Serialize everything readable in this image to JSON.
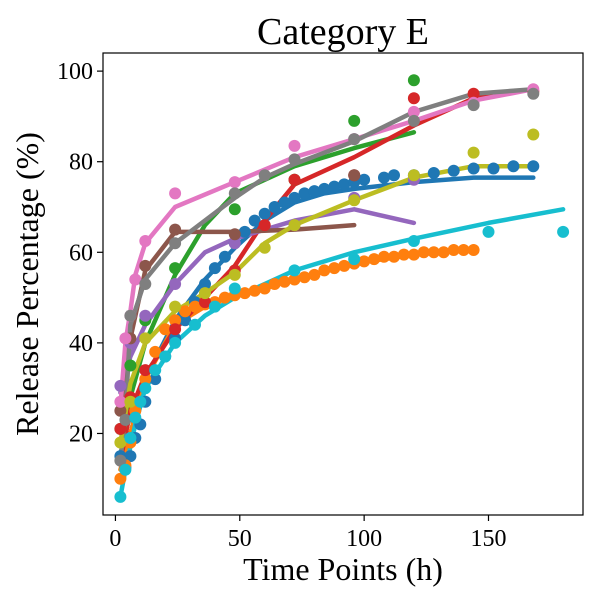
{
  "chart_data": {
    "type": "scatter",
    "title": "Category E",
    "xlabel": "Time Points (h)",
    "ylabel": "Release Percentage (%)",
    "xlim": [
      -5,
      188
    ],
    "ylim": [
      2,
      104
    ],
    "xticks": [
      0,
      50,
      100,
      150
    ],
    "yticks": [
      20,
      40,
      60,
      80,
      100
    ],
    "xtick_labels": [
      "0",
      "50",
      "100",
      "150"
    ],
    "ytick_labels": [
      "20",
      "40",
      "60",
      "80",
      "100"
    ],
    "grid": false,
    "legend": "none",
    "series": [
      {
        "color": "#1f77b4",
        "points": [
          [
            2,
            15
          ],
          [
            4,
            12.5
          ],
          [
            6,
            15
          ],
          [
            8,
            19
          ],
          [
            10,
            22
          ],
          [
            12,
            27
          ],
          [
            16,
            32
          ],
          [
            20,
            37
          ],
          [
            24,
            41
          ],
          [
            28,
            45
          ],
          [
            32,
            49
          ],
          [
            36,
            53
          ],
          [
            40,
            56.5
          ],
          [
            44,
            59
          ],
          [
            48,
            62
          ],
          [
            52,
            64.5
          ],
          [
            56,
            67
          ],
          [
            60,
            68.5
          ],
          [
            64,
            70
          ],
          [
            68,
            71
          ],
          [
            72,
            72
          ],
          [
            76,
            73
          ],
          [
            80,
            73.5
          ],
          [
            84,
            74
          ],
          [
            88,
            74.5
          ],
          [
            92,
            75
          ],
          [
            96,
            75.5
          ],
          [
            100,
            76
          ],
          [
            108,
            76.5
          ],
          [
            112,
            77
          ],
          [
            120,
            77
          ],
          [
            128,
            77.5
          ],
          [
            136,
            78
          ],
          [
            144,
            78.5
          ],
          [
            152,
            78.5
          ],
          [
            160,
            79
          ],
          [
            168,
            79
          ]
        ],
        "fit": [
          [
            2,
            14
          ],
          [
            6,
            20
          ],
          [
            12,
            32
          ],
          [
            24,
            45
          ],
          [
            36,
            54
          ],
          [
            48,
            61
          ],
          [
            60,
            67
          ],
          [
            72,
            71
          ],
          [
            84,
            73
          ],
          [
            96,
            74
          ],
          [
            120,
            75.5
          ],
          [
            144,
            76.5
          ],
          [
            168,
            76.5
          ]
        ]
      },
      {
        "color": "#ff7f0e",
        "points": [
          [
            2,
            10
          ],
          [
            4,
            13
          ],
          [
            6,
            18
          ],
          [
            8,
            25
          ],
          [
            12,
            32
          ],
          [
            16,
            38
          ],
          [
            20,
            43
          ],
          [
            24,
            45
          ],
          [
            28,
            47
          ],
          [
            32,
            48
          ],
          [
            36,
            48.5
          ],
          [
            40,
            49
          ],
          [
            44,
            50
          ],
          [
            48,
            50.5
          ],
          [
            52,
            51
          ],
          [
            56,
            51.5
          ],
          [
            60,
            52
          ],
          [
            64,
            53
          ],
          [
            68,
            53.5
          ],
          [
            72,
            54
          ],
          [
            76,
            54.5
          ],
          [
            80,
            55
          ],
          [
            84,
            56
          ],
          [
            88,
            56.5
          ],
          [
            92,
            57
          ],
          [
            96,
            57.5
          ],
          [
            100,
            58
          ],
          [
            104,
            58.5
          ],
          [
            108,
            59
          ],
          [
            112,
            59
          ],
          [
            116,
            59.5
          ],
          [
            120,
            59.5
          ],
          [
            124,
            60
          ],
          [
            128,
            60
          ],
          [
            132,
            60
          ],
          [
            136,
            60.5
          ],
          [
            140,
            60.5
          ],
          [
            144,
            60.5
          ]
        ],
        "fit": [
          [
            2,
            12
          ],
          [
            6,
            20
          ],
          [
            12,
            32
          ],
          [
            24,
            44
          ],
          [
            36,
            48
          ],
          [
            48,
            50.5
          ],
          [
            60,
            52
          ],
          [
            72,
            54
          ],
          [
            96,
            57.5
          ],
          [
            120,
            59.5
          ],
          [
            144,
            60.5
          ]
        ]
      },
      {
        "color": "#2ca02c",
        "points": [
          [
            2,
            21
          ],
          [
            6,
            35
          ],
          [
            12,
            45
          ],
          [
            24,
            56.5
          ],
          [
            48,
            69.5
          ],
          [
            72,
            76
          ],
          [
            96,
            89
          ],
          [
            120,
            98
          ]
        ],
        "fit": [
          [
            2,
            15
          ],
          [
            6,
            28
          ],
          [
            12,
            40
          ],
          [
            24,
            55
          ],
          [
            36,
            66
          ],
          [
            48,
            73
          ],
          [
            72,
            79
          ],
          [
            96,
            83
          ],
          [
            120,
            86.5
          ]
        ]
      },
      {
        "color": "#d62728",
        "points": [
          [
            2,
            21
          ],
          [
            6,
            28
          ],
          [
            12,
            34
          ],
          [
            24,
            43
          ],
          [
            36,
            49
          ],
          [
            48,
            56
          ],
          [
            60,
            66
          ],
          [
            72,
            76
          ],
          [
            96,
            77
          ],
          [
            120,
            94
          ],
          [
            144,
            95
          ],
          [
            168,
            95.5
          ]
        ],
        "fit": [
          [
            2,
            14
          ],
          [
            6,
            25
          ],
          [
            12,
            33
          ],
          [
            24,
            43
          ],
          [
            36,
            50
          ],
          [
            48,
            57
          ],
          [
            60,
            67
          ],
          [
            72,
            75
          ],
          [
            96,
            81
          ],
          [
            120,
            88
          ],
          [
            144,
            94
          ],
          [
            168,
            96
          ]
        ]
      },
      {
        "color": "#9467bd",
        "points": [
          [
            2,
            30.5
          ],
          [
            6,
            40
          ],
          [
            12,
            46
          ],
          [
            24,
            53
          ],
          [
            48,
            62
          ],
          [
            72,
            66
          ],
          [
            96,
            72
          ],
          [
            120,
            76
          ]
        ],
        "fit": [
          [
            2,
            29
          ],
          [
            6,
            37
          ],
          [
            12,
            44
          ],
          [
            24,
            53
          ],
          [
            36,
            60
          ],
          [
            48,
            63
          ],
          [
            72,
            67
          ],
          [
            96,
            69.5
          ],
          [
            120,
            66.5
          ]
        ]
      },
      {
        "color": "#8c564b",
        "points": [
          [
            2,
            25
          ],
          [
            6,
            41
          ],
          [
            12,
            57
          ],
          [
            24,
            65
          ],
          [
            48,
            64
          ],
          [
            96,
            77
          ]
        ],
        "fit": [
          [
            2,
            25
          ],
          [
            6,
            41
          ],
          [
            12,
            56
          ],
          [
            24,
            64.5
          ],
          [
            48,
            64.5
          ],
          [
            72,
            65
          ],
          [
            96,
            66
          ]
        ]
      },
      {
        "color": "#e377c2",
        "points": [
          [
            2,
            27
          ],
          [
            4,
            41
          ],
          [
            6,
            46
          ],
          [
            8,
            54
          ],
          [
            12,
            62.5
          ],
          [
            24,
            73
          ],
          [
            48,
            75.5
          ],
          [
            72,
            83.5
          ],
          [
            96,
            85
          ],
          [
            120,
            91
          ],
          [
            144,
            93
          ],
          [
            168,
            96
          ]
        ],
        "fit": [
          [
            2,
            26
          ],
          [
            4,
            40
          ],
          [
            6,
            47
          ],
          [
            8,
            55
          ],
          [
            12,
            62
          ],
          [
            24,
            70
          ],
          [
            48,
            75.5
          ],
          [
            72,
            81
          ],
          [
            96,
            85
          ],
          [
            120,
            89
          ],
          [
            144,
            93.5
          ],
          [
            168,
            96
          ]
        ]
      },
      {
        "color": "#7f7f7f",
        "points": [
          [
            2,
            14
          ],
          [
            4,
            23
          ],
          [
            6,
            46
          ],
          [
            12,
            53
          ],
          [
            24,
            62
          ],
          [
            48,
            73
          ],
          [
            60,
            77
          ],
          [
            72,
            80.5
          ],
          [
            96,
            85
          ],
          [
            120,
            89
          ],
          [
            144,
            92.5
          ],
          [
            168,
            95
          ]
        ],
        "fit": [
          [
            2,
            14
          ],
          [
            4,
            24
          ],
          [
            6,
            44
          ],
          [
            12,
            54
          ],
          [
            24,
            62
          ],
          [
            48,
            72
          ],
          [
            60,
            76.5
          ],
          [
            72,
            79.5
          ],
          [
            96,
            84.5
          ],
          [
            120,
            91
          ],
          [
            144,
            95
          ],
          [
            168,
            96
          ]
        ]
      },
      {
        "color": "#bcbd22",
        "points": [
          [
            2,
            18
          ],
          [
            6,
            27
          ],
          [
            12,
            41
          ],
          [
            24,
            48
          ],
          [
            36,
            51
          ],
          [
            48,
            55
          ],
          [
            60,
            61
          ],
          [
            72,
            66
          ],
          [
            96,
            71.5
          ],
          [
            120,
            77
          ],
          [
            144,
            82
          ],
          [
            168,
            86
          ]
        ],
        "fit": [
          [
            2,
            18
          ],
          [
            6,
            31
          ],
          [
            12,
            40
          ],
          [
            24,
            47
          ],
          [
            36,
            51
          ],
          [
            48,
            55.5
          ],
          [
            60,
            62
          ],
          [
            72,
            66
          ],
          [
            96,
            71.5
          ],
          [
            120,
            76.5
          ],
          [
            144,
            79
          ],
          [
            168,
            79
          ]
        ]
      },
      {
        "color": "#17becf",
        "points": [
          [
            2,
            6
          ],
          [
            4,
            12
          ],
          [
            6,
            19
          ],
          [
            8,
            23.5
          ],
          [
            10,
            27
          ],
          [
            12,
            30
          ],
          [
            16,
            34
          ],
          [
            20,
            37
          ],
          [
            24,
            40
          ],
          [
            32,
            44
          ],
          [
            40,
            48
          ],
          [
            48,
            52
          ],
          [
            72,
            56
          ],
          [
            96,
            58.5
          ],
          [
            120,
            62.5
          ],
          [
            150,
            64.5
          ],
          [
            180,
            64.5
          ]
        ],
        "fit": [
          [
            2,
            6
          ],
          [
            4,
            12
          ],
          [
            8,
            22
          ],
          [
            12,
            30
          ],
          [
            24,
            40
          ],
          [
            36,
            46
          ],
          [
            48,
            50
          ],
          [
            60,
            53
          ],
          [
            72,
            56
          ],
          [
            96,
            60
          ],
          [
            120,
            63
          ],
          [
            150,
            66.5
          ],
          [
            180,
            69.5
          ]
        ]
      }
    ]
  }
}
